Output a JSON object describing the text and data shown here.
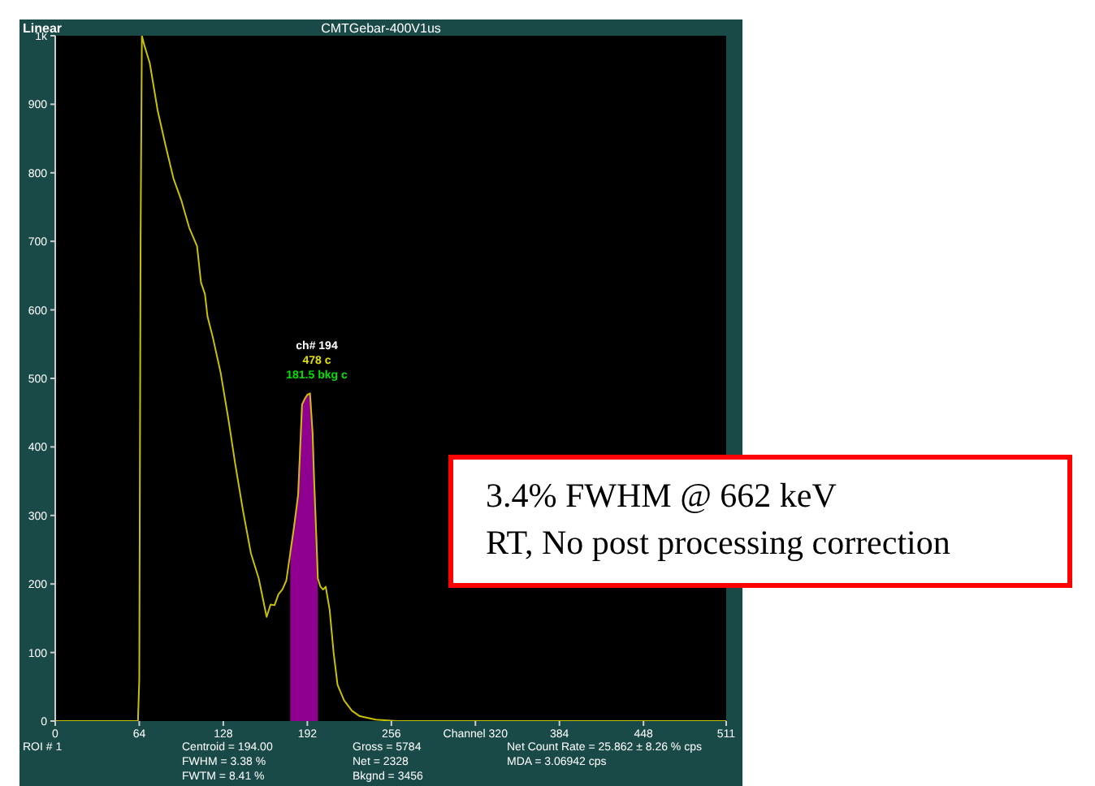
{
  "chart_data": {
    "type": "line",
    "title": "CMTGebar-400V1us",
    "subtitle": "Linear",
    "series": [
      {
        "color": "#c8c000",
        "x": [
          0,
          60,
          63,
          64,
          65,
          66,
          68,
          72,
          78,
          84,
          90,
          96,
          102,
          108,
          111,
          114,
          116,
          120,
          126,
          132,
          137,
          143,
          149,
          155,
          161,
          164,
          167,
          170,
          173,
          176,
          179,
          182,
          185,
          188,
          190,
          192,
          194,
          196,
          197,
          199,
          200,
          202,
          204,
          206,
          209,
          212,
          215,
          220,
          226,
          232,
          244,
          260,
          300,
          400,
          511
        ],
        "values": [
          0,
          0,
          0,
          60,
          700,
          1000,
          985,
          960,
          891,
          840,
          792,
          760,
          720,
          693,
          640,
          623,
          590,
          560,
          508,
          439,
          376,
          307,
          245,
          208,
          152,
          170,
          169,
          185,
          192,
          205,
          245,
          285,
          330,
          462,
          470,
          476,
          478,
          420,
          360,
          260,
          208,
          196,
          192,
          196,
          162,
          100,
          53,
          30,
          15,
          7,
          2,
          0,
          0,
          0,
          0
        ]
      },
      {
        "type": "area",
        "color": "#a000a0",
        "x": [
          179,
          182,
          185,
          188,
          190,
          192,
          194,
          196,
          197,
          199,
          200
        ],
        "values": [
          245,
          285,
          330,
          462,
          470,
          476,
          478,
          420,
          360,
          260,
          208
        ]
      }
    ],
    "xlim": [
      0,
      511
    ],
    "xticks": [
      0,
      64,
      128,
      192,
      256,
      {
        "value": 320,
        "label": "Channel 320"
      },
      384,
      448,
      511
    ],
    "ylim": [
      0,
      1000
    ],
    "yticks": [
      0,
      100,
      200,
      300,
      400,
      500,
      600,
      700,
      800,
      900,
      {
        "value": 1000,
        "label": "1k"
      }
    ],
    "annotations": [
      "ch# 194",
      "478 c",
      "181.5 bkg c",
      "3.4% FWHM @ 662 keV",
      "RT, No post processing correction",
      "ROI # 1",
      "Centroid = 194.00",
      "FWHM  =  3.38 %",
      "FWTM  =  8.41 %",
      "Gross = 5784",
      "Net  = 2328",
      "Bkgnd = 3456",
      "Net Count Rate =  25.862 ± 8.26 % cps",
      "MDA  = 3.06942  cps"
    ]
  }
}
